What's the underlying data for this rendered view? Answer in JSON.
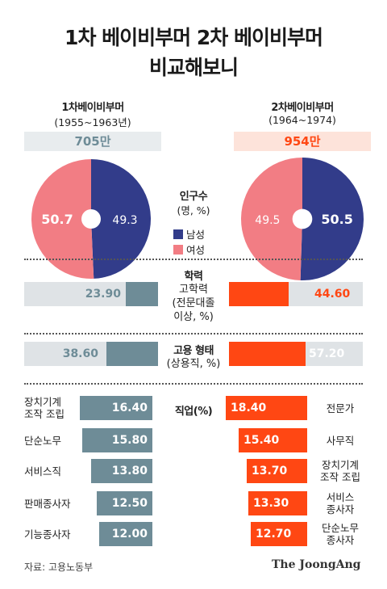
{
  "title_line1": "1차 베이비부머 2차 베이비부머",
  "title_line2": "비교해보니",
  "gen1": {
    "name": "1차베이비부머",
    "years": "(1955~1963년)",
    "population": "705만"
  },
  "gen2": {
    "name": "2차베이비부머",
    "years": "(1964~1974)",
    "population": "954만"
  },
  "population_label": {
    "title": "인구수",
    "unit": "(명, %)"
  },
  "legend": {
    "male": "남성",
    "female": "여성"
  },
  "sections": {
    "education": {
      "title": "학력",
      "desc": [
        "고학력",
        "(전문대졸",
        "이상, %)"
      ]
    },
    "employment": {
      "title": "고용 형태",
      "desc": [
        "(상용직, %)"
      ]
    },
    "occupation": {
      "title": "직업(%)"
    }
  },
  "source": "자료: 고용노동부",
  "logo": "The JoongAng",
  "colors": {
    "male": "#323c8a",
    "female": "#f27d84",
    "gen1_bar": "#6e8c97",
    "gen2_bar": "#ff4713",
    "track": "#dfe3e6",
    "gen1_text": "#6e8c97",
    "gen2_text": "#ff4713"
  },
  "chart_data": [
    {
      "type": "pie",
      "title": "1차베이비부머 인구수",
      "categories": [
        "남성",
        "여성"
      ],
      "values": [
        49.3,
        50.7
      ]
    },
    {
      "type": "pie",
      "title": "2차베이비부머 인구수",
      "categories": [
        "남성",
        "여성"
      ],
      "values": [
        50.5,
        49.5
      ]
    },
    {
      "type": "bar",
      "title": "학력",
      "categories": [
        "1차베이비부머",
        "2차베이비부머"
      ],
      "values": [
        23.9,
        44.6
      ],
      "labels": [
        "23.90",
        "44.60"
      ]
    },
    {
      "type": "bar",
      "title": "고용 형태",
      "categories": [
        "1차베이비부머",
        "2차베이비부머"
      ],
      "values": [
        38.6,
        57.2
      ],
      "labels": [
        "38.60",
        "57.20"
      ]
    },
    {
      "type": "bar",
      "title": "직업(%)",
      "series": [
        {
          "name": "1차베이비부머",
          "categories": [
            "장치기계 조작 조립",
            "단순노무",
            "서비스직",
            "판매종사자",
            "기능종사자"
          ],
          "values": [
            16.4,
            15.8,
            13.8,
            12.5,
            12.0
          ],
          "labels": [
            "16.40",
            "15.80",
            "13.80",
            "12.50",
            "12.00"
          ]
        },
        {
          "name": "2차베이비부머",
          "categories": [
            "전문가",
            "사무직",
            "장치기계 조작 조립",
            "서비스 종사자",
            "단순노무 종사자"
          ],
          "values": [
            18.4,
            15.4,
            13.7,
            13.3,
            12.7
          ],
          "labels": [
            "18.40",
            "15.40",
            "13.70",
            "13.30",
            "12.70"
          ]
        }
      ]
    }
  ]
}
